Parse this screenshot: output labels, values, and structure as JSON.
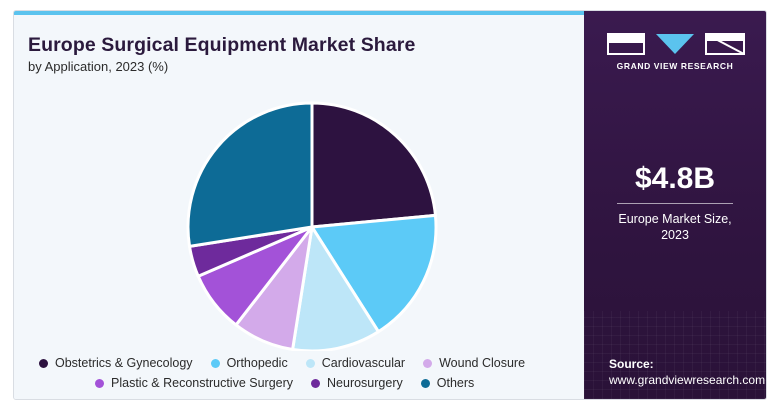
{
  "header": {
    "title": "Europe Surgical Equipment Market Share",
    "subtitle": "by Application, 2023 (%)"
  },
  "chart_data": {
    "type": "pie",
    "categories": [
      "Obstetrics & Gynecology",
      "Orthopedic",
      "Cardiovascular",
      "Wound Closure",
      "Plastic & Reconstructive Surgery",
      "Neurosurgery",
      "Others"
    ],
    "values": [
      23.5,
      17.5,
      11.5,
      8.0,
      8.0,
      4.0,
      27.5
    ],
    "colors": [
      "#2d1240",
      "#5ccaf7",
      "#bde6f8",
      "#d3aaea",
      "#a352d8",
      "#6e2a9c",
      "#0d6b96"
    ],
    "legend_position": "bottom",
    "title": "Europe Surgical Equipment Market Share",
    "subtitle": "by Application, 2023 (%)"
  },
  "sidebar": {
    "brand": "GRAND VIEW RESEARCH",
    "market_value": "$4.8B",
    "market_label_line1": "Europe Market Size,",
    "market_label_line2": "2023",
    "source_label": "Source:",
    "source_url": "www.grandviewresearch.com",
    "logo_icon": "grand-view-research-logo"
  }
}
